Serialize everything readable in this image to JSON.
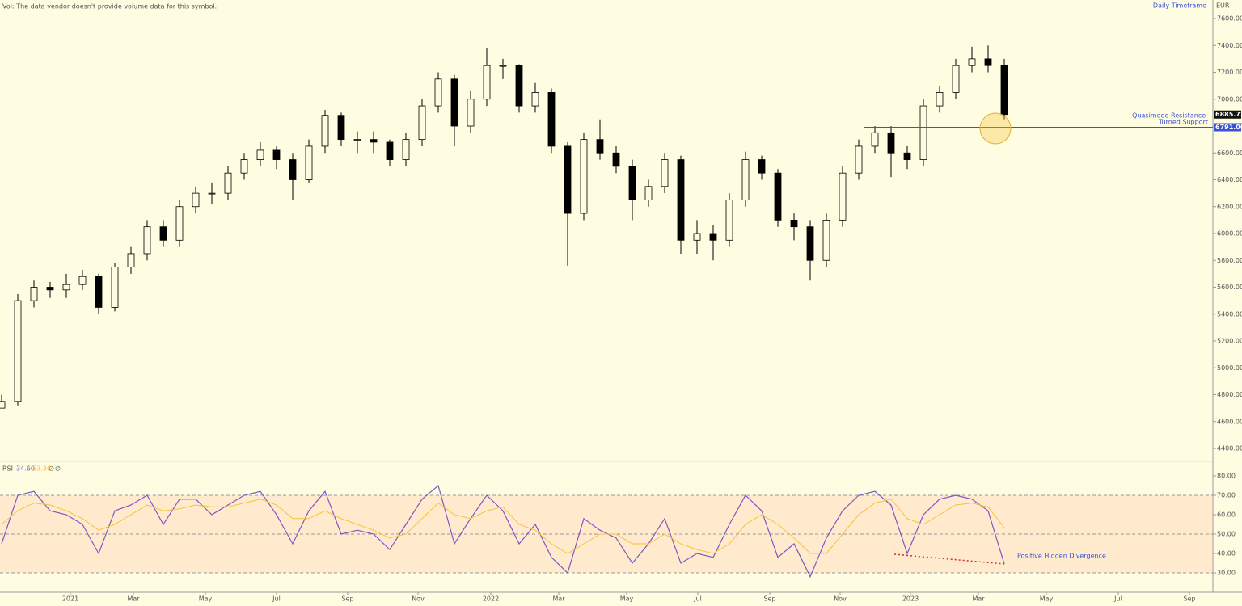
{
  "header": {
    "note": "Vol: The data vendor doesn't provide volume data for this symbol.",
    "timeframe": "Daily Timeframe"
  },
  "chart_data": [
    {
      "type": "candlestick",
      "unit": "EUR",
      "color": "#000000",
      "xlim": [
        -0.1,
        74.9
      ],
      "ylim": [
        4400,
        7600
      ],
      "yticks": [
        {
          "value": 4400,
          "label": "4400.00"
        },
        {
          "value": 4600,
          "label": "4600.00"
        },
        {
          "value": 4800,
          "label": "4800.00"
        },
        {
          "value": 5000,
          "label": "5000.00"
        },
        {
          "value": 5200,
          "label": "5200.00"
        },
        {
          "value": 5400,
          "label": "5400.00"
        },
        {
          "value": 5600,
          "label": "5600.00"
        },
        {
          "value": 5800,
          "label": "5800.00"
        },
        {
          "value": 6000,
          "label": "6000.00"
        },
        {
          "value": 6200,
          "label": "6200.00"
        },
        {
          "value": 6400,
          "label": "6400.00"
        },
        {
          "value": 6600,
          "label": "6600.00"
        },
        {
          "value": 6800,
          "label": "6800.00"
        },
        {
          "value": 7000,
          "label": "7000.00"
        },
        {
          "value": 7200,
          "label": "7200.00"
        },
        {
          "value": 7400,
          "label": "7400.00"
        },
        {
          "value": 7600,
          "label": "7600.00"
        }
      ],
      "open": [
        4700,
        4750,
        5500,
        5600,
        5580,
        5620,
        5680,
        5450,
        5750,
        5850,
        6050,
        5950,
        6200,
        6300,
        6300,
        6450,
        6550,
        6620,
        6550,
        6400,
        6650,
        6880,
        6700,
        6700,
        6680,
        6550,
        6700,
        6950,
        7150,
        6800,
        7000,
        7250,
        7250,
        6950,
        7050,
        6650,
        6150,
        6700,
        6600,
        6500,
        6250,
        6350,
        6550,
        5950,
        6000,
        5950,
        6250,
        6550,
        6450,
        6100,
        6050,
        5800,
        6100,
        6450,
        6650,
        6750,
        6600,
        6550,
        6950,
        7050,
        7250,
        7300,
        7250
      ],
      "high": [
        4800,
        5550,
        5650,
        5640,
        5700,
        5730,
        5700,
        5780,
        5900,
        6100,
        6100,
        6250,
        6350,
        6380,
        6500,
        6600,
        6680,
        6650,
        6600,
        6700,
        6920,
        6900,
        6760,
        6760,
        6700,
        6750,
        7000,
        7200,
        7180,
        7060,
        7380,
        7300,
        7260,
        7120,
        7080,
        6680,
        6750,
        6850,
        6650,
        6550,
        6400,
        6600,
        6580,
        6100,
        6060,
        6300,
        6610,
        6580,
        6480,
        6150,
        6100,
        6150,
        6500,
        6700,
        6800,
        6800,
        6650,
        7000,
        7100,
        7300,
        7390,
        7400,
        7300
      ],
      "low": [
        4700,
        4720,
        5450,
        5520,
        5520,
        5580,
        5400,
        5420,
        5700,
        5800,
        5900,
        5900,
        6150,
        6220,
        6250,
        6400,
        6500,
        6480,
        6250,
        6380,
        6600,
        6650,
        6600,
        6600,
        6500,
        6500,
        6650,
        6900,
        6650,
        6750,
        6950,
        7150,
        6900,
        6900,
        6600,
        5760,
        6100,
        6550,
        6450,
        6100,
        6200,
        6300,
        5850,
        5850,
        5800,
        5900,
        6200,
        6400,
        6050,
        5950,
        5650,
        5750,
        6050,
        6400,
        6600,
        6420,
        6480,
        6500,
        6900,
        7000,
        7200,
        7200,
        6850
      ],
      "close": [
        4750,
        5500,
        5600,
        5580,
        5620,
        5680,
        5450,
        5750,
        5850,
        6050,
        5950,
        6200,
        6300,
        6300,
        6450,
        6550,
        6620,
        6550,
        6400,
        6650,
        6880,
        6700,
        6700,
        6680,
        6550,
        6700,
        6950,
        7150,
        6800,
        7000,
        7250,
        7250,
        6950,
        7050,
        6650,
        6150,
        6700,
        6600,
        6500,
        6250,
        6350,
        6550,
        5950,
        6000,
        5950,
        6250,
        6550,
        6450,
        6100,
        6050,
        5800,
        6100,
        6450,
        6650,
        6750,
        6600,
        6550,
        6950,
        7050,
        7250,
        7300,
        7250,
        6885.72
      ],
      "last_label": "6885.72",
      "support": {
        "value": 6791,
        "label": "6791.00",
        "x_start": 53.3,
        "color": "#3a52d6",
        "text": [
          "Quasimodo Resistance-",
          "Turned Support"
        ]
      }
    },
    {
      "type": "line",
      "title": "RSI",
      "ylim": [
        22,
        86
      ],
      "yticks": [
        {
          "value": 30,
          "label": "30.00"
        },
        {
          "value": 40,
          "label": "40.00"
        },
        {
          "value": 50,
          "label": "50.00"
        },
        {
          "value": 60,
          "label": "60.00"
        },
        {
          "value": 70,
          "label": "70.00"
        },
        {
          "value": 80,
          "label": "80.00"
        }
      ],
      "bands": [
        30,
        50,
        70
      ],
      "xticks": [
        {
          "value": 4.25,
          "label": "2021"
        },
        {
          "value": 8.15,
          "label": "Mar"
        },
        {
          "value": 12.6,
          "label": "May"
        },
        {
          "value": 17,
          "label": "Jul"
        },
        {
          "value": 21.4,
          "label": "Sep"
        },
        {
          "value": 25.75,
          "label": "Nov"
        },
        {
          "value": 30.25,
          "label": "2022"
        },
        {
          "value": 34.45,
          "label": "Mar"
        },
        {
          "value": 38.65,
          "label": "May"
        },
        {
          "value": 43.05,
          "label": "Jul"
        },
        {
          "value": 47.5,
          "label": "Sep"
        },
        {
          "value": 51.85,
          "label": "Nov"
        },
        {
          "value": 56.2,
          "label": "2023"
        },
        {
          "value": 60.4,
          "label": "Mar"
        },
        {
          "value": 64.6,
          "label": "May"
        },
        {
          "value": 69.05,
          "label": "Jul"
        },
        {
          "value": 73.45,
          "label": "Sep"
        }
      ],
      "series": [
        {
          "name": "34.60",
          "color": "#7e57c2",
          "values": [
            45,
            70,
            72,
            62,
            60,
            55,
            40,
            62,
            65,
            70,
            55,
            68,
            68,
            60,
            65,
            70,
            72,
            60,
            45,
            62,
            72,
            50,
            52,
            50,
            42,
            55,
            68,
            75,
            45,
            58,
            70,
            62,
            45,
            55,
            38,
            30,
            58,
            52,
            48,
            35,
            45,
            58,
            35,
            40,
            38,
            55,
            70,
            62,
            38,
            45,
            28,
            48,
            62,
            70,
            72,
            65,
            40,
            60,
            68,
            70,
            68,
            62,
            34.6
          ]
        },
        {
          "name": "53.36",
          "color": "#f5c33b",
          "values": [
            55,
            62,
            66,
            65,
            62,
            58,
            52,
            55,
            60,
            65,
            62,
            63,
            65,
            64,
            64,
            66,
            68,
            65,
            58,
            58,
            62,
            58,
            55,
            52,
            48,
            50,
            58,
            66,
            60,
            58,
            62,
            64,
            55,
            52,
            45,
            40,
            45,
            50,
            50,
            45,
            45,
            50,
            45,
            42,
            40,
            45,
            55,
            60,
            55,
            48,
            40,
            40,
            50,
            60,
            66,
            68,
            58,
            55,
            60,
            65,
            66,
            64,
            53.36
          ]
        }
      ],
      "extra_legend": [
        "∅",
        "∅"
      ],
      "divergence": {
        "x": [
          55.2,
          62
        ],
        "y": [
          39.6,
          34.6
        ],
        "color": "#d32f2f",
        "label": "Positive Hidden Divergence"
      }
    }
  ]
}
